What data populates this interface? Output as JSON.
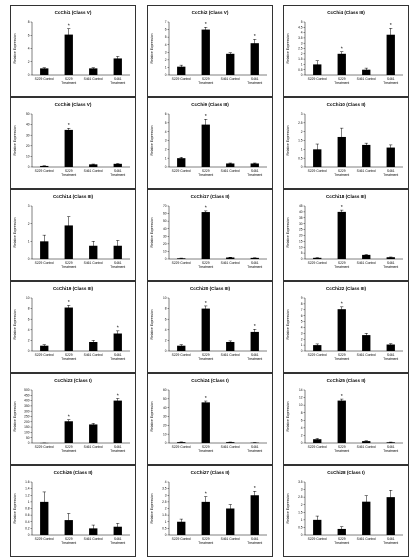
{
  "chart_data": [
    {
      "type": "bar",
      "title": "CcChi1 (Class V)",
      "ylabel": "Relative Expression",
      "categories": [
        "S229 Control",
        "S229 Treatment",
        "S461 Control",
        "S461 Treatment"
      ],
      "values": [
        1.0,
        6.1,
        1.0,
        2.5
      ],
      "errors": [
        0.1,
        0.9,
        0.1,
        0.3
      ],
      "sig": [
        false,
        true,
        false,
        false
      ],
      "ylim": [
        0,
        8
      ],
      "yticks": [
        0,
        2,
        4,
        6,
        8
      ]
    },
    {
      "type": "bar",
      "title": "CcChi2 (Class V)",
      "ylabel": "Relative Expression",
      "categories": [
        "S229 Control",
        "S229 Treatment",
        "S461 Control",
        "S461 Treatment"
      ],
      "values": [
        1.1,
        6.0,
        2.8,
        4.2
      ],
      "errors": [
        0.2,
        0.3,
        0.15,
        0.5
      ],
      "sig": [
        false,
        true,
        false,
        true
      ],
      "ylim": [
        0,
        7
      ],
      "yticks": [
        0,
        1,
        2,
        3,
        4,
        5,
        6,
        7
      ]
    },
    {
      "type": "bar",
      "title": "CcChi4 (Class III)",
      "ylabel": "Relative Expression",
      "categories": [
        "S229 Control",
        "S229 Treatment",
        "S461 Control",
        "S461 Treatment"
      ],
      "values": [
        1.0,
        2.0,
        0.5,
        3.8
      ],
      "errors": [
        0.35,
        0.2,
        0.15,
        0.6
      ],
      "sig": [
        false,
        true,
        false,
        true
      ],
      "ylim": [
        0,
        5
      ],
      "yticks": [
        0,
        0.5,
        1,
        1.5,
        2,
        2.5,
        3,
        3.5,
        4,
        4.5,
        5
      ]
    },
    {
      "type": "bar",
      "title": "CcChi6 (Class V)",
      "ylabel": "Relative Expression",
      "categories": [
        "S229 Control",
        "S229 Treatment",
        "S461 Control",
        "S461 Treatment"
      ],
      "values": [
        1.0,
        35.0,
        2.5,
        3.0
      ],
      "errors": [
        0.2,
        1.5,
        0.3,
        0.3
      ],
      "sig": [
        false,
        true,
        false,
        false
      ],
      "ylim": [
        0,
        50
      ],
      "yticks": [
        0,
        10,
        20,
        30,
        40,
        50
      ]
    },
    {
      "type": "bar",
      "title": "CcChi9 (Class III)",
      "ylabel": "Relative Expression",
      "categories": [
        "S229 Control",
        "S229 Treatment",
        "S461 Control",
        "S461 Treatment"
      ],
      "values": [
        1.0,
        4.8,
        0.4,
        0.4
      ],
      "errors": [
        0.1,
        0.6,
        0.05,
        0.05
      ],
      "sig": [
        false,
        true,
        false,
        false
      ],
      "ylim": [
        0,
        6
      ],
      "yticks": [
        0,
        1,
        2,
        3,
        4,
        5,
        6
      ]
    },
    {
      "type": "bar",
      "title": "CcChi10 (Class II)",
      "ylabel": "Relative Expression",
      "categories": [
        "S229 Control",
        "S229 Treatment",
        "S461 Control",
        "S461 Treatment"
      ],
      "values": [
        1.0,
        1.7,
        1.25,
        1.1
      ],
      "errors": [
        0.3,
        0.5,
        0.1,
        0.15
      ],
      "sig": [
        false,
        false,
        false,
        false
      ],
      "ylim": [
        0,
        3
      ],
      "yticks": [
        0,
        0.5,
        1,
        1.5,
        2,
        2.5,
        3
      ]
    },
    {
      "type": "bar",
      "title": "CcChi14 (Class III)",
      "ylabel": "Relative Expression",
      "categories": [
        "S229 Control",
        "S229 Treatment",
        "S461 Control",
        "S461 Treatment"
      ],
      "values": [
        1.0,
        1.9,
        0.75,
        0.75
      ],
      "errors": [
        0.35,
        0.5,
        0.25,
        0.3
      ],
      "sig": [
        false,
        false,
        false,
        false
      ],
      "ylim": [
        0,
        3
      ],
      "yticks": [
        0,
        1,
        2,
        3
      ]
    },
    {
      "type": "bar",
      "title": "CcChi17 (Class II)",
      "ylabel": "Relative Expression",
      "categories": [
        "S229 Control",
        "S229 Treatment",
        "S461 Control",
        "S461 Treatment"
      ],
      "values": [
        1.0,
        62.0,
        2.0,
        1.5
      ],
      "errors": [
        0.2,
        1.5,
        0.3,
        0.2
      ],
      "sig": [
        false,
        true,
        false,
        false
      ],
      "ylim": [
        0,
        70
      ],
      "yticks": [
        0,
        10,
        20,
        30,
        40,
        50,
        60,
        70
      ]
    },
    {
      "type": "bar",
      "title": "CcChi18 (Class III)",
      "ylabel": "Relative Expression",
      "categories": [
        "S229 Control",
        "S229 Treatment",
        "S461 Control",
        "S461 Treatment"
      ],
      "values": [
        1.0,
        40.0,
        3.5,
        1.5
      ],
      "errors": [
        0.2,
        1.5,
        0.3,
        0.2
      ],
      "sig": [
        false,
        true,
        false,
        false
      ],
      "ylim": [
        0,
        45
      ],
      "yticks": [
        0,
        5,
        10,
        15,
        20,
        25,
        30,
        35,
        40,
        45
      ]
    },
    {
      "type": "bar",
      "title": "CcChi19 (Class III)",
      "ylabel": "Relative Expression",
      "categories": [
        "S229 Control",
        "S229 Treatment",
        "S461 Control",
        "S461 Treatment"
      ],
      "values": [
        1.0,
        8.2,
        1.7,
        3.3
      ],
      "errors": [
        0.2,
        0.4,
        0.3,
        0.5
      ],
      "sig": [
        false,
        true,
        false,
        true
      ],
      "ylim": [
        0,
        10
      ],
      "yticks": [
        0,
        2,
        4,
        6,
        8,
        10
      ]
    },
    {
      "type": "bar",
      "title": "CcChi20 (Class III)",
      "ylabel": "Relative Expression",
      "categories": [
        "S229 Control",
        "S229 Treatment",
        "S461 Control",
        "S461 Treatment"
      ],
      "values": [
        1.0,
        8.0,
        1.7,
        3.6
      ],
      "errors": [
        0.2,
        0.5,
        0.2,
        0.5
      ],
      "sig": [
        false,
        true,
        false,
        true
      ],
      "ylim": [
        0,
        10
      ],
      "yticks": [
        0,
        2,
        4,
        6,
        8,
        10
      ]
    },
    {
      "type": "bar",
      "title": "CcChi22 (Class III)",
      "ylabel": "Relative Expression",
      "categories": [
        "S229 Control",
        "S229 Treatment",
        "S461 Control",
        "S461 Treatment"
      ],
      "values": [
        1.0,
        7.1,
        2.7,
        1.1
      ],
      "errors": [
        0.2,
        0.4,
        0.3,
        0.15
      ],
      "sig": [
        false,
        true,
        false,
        false
      ],
      "ylim": [
        0,
        9
      ],
      "yticks": [
        0,
        1,
        2,
        3,
        4,
        5,
        6,
        7,
        8,
        9
      ]
    },
    {
      "type": "bar",
      "title": "CcChi23 (Class I)",
      "ylabel": "Relative Expression",
      "categories": [
        "S229 Control",
        "S229 Treatment",
        "S461 Control",
        "S461 Treatment"
      ],
      "values": [
        1.0,
        205.0,
        175.0,
        400.0
      ],
      "errors": [
        0.5,
        15.0,
        10.0,
        20.0
      ],
      "sig": [
        false,
        true,
        false,
        true
      ],
      "ylim": [
        0,
        500
      ],
      "yticks": [
        0,
        50,
        100,
        150,
        200,
        250,
        300,
        350,
        400,
        450,
        500
      ]
    },
    {
      "type": "bar",
      "title": "CcChi24 (Class I)",
      "ylabel": "Relative Expression",
      "categories": [
        "S229 Control",
        "S229 Treatment",
        "S461 Control",
        "S461 Treatment"
      ],
      "values": [
        1.0,
        46.0,
        1.0,
        0.5
      ],
      "errors": [
        0.2,
        1.5,
        0.1,
        0.1
      ],
      "sig": [
        false,
        true,
        false,
        false
      ],
      "ylim": [
        0,
        60
      ],
      "yticks": [
        0,
        10,
        20,
        30,
        40,
        50,
        60
      ]
    },
    {
      "type": "bar",
      "title": "CcChi25 (Class II)",
      "ylabel": "Relative Expression",
      "categories": [
        "S229 Control",
        "S229 Treatment",
        "S461 Control",
        "S461 Treatment"
      ],
      "values": [
        1.0,
        11.2,
        0.5,
        0.2
      ],
      "errors": [
        0.2,
        0.4,
        0.1,
        0.05
      ],
      "sig": [
        false,
        true,
        false,
        false
      ],
      "ylim": [
        0,
        14
      ],
      "yticks": [
        0,
        2,
        4,
        6,
        8,
        10,
        12,
        14
      ]
    },
    {
      "type": "bar",
      "title": "CcChi26 (Class II)",
      "ylabel": "Relative Expression",
      "categories": [
        "S229 Control",
        "S229 Treatment",
        "S461 Control",
        "S461 Treatment"
      ],
      "values": [
        1.0,
        0.45,
        0.2,
        0.25
      ],
      "errors": [
        0.3,
        0.2,
        0.1,
        0.1
      ],
      "sig": [
        false,
        false,
        false,
        false
      ],
      "ylim": [
        0,
        1.6
      ],
      "yticks": [
        0,
        0.2,
        0.4,
        0.6,
        0.8,
        1,
        1.2,
        1.4,
        1.6
      ]
    },
    {
      "type": "bar",
      "title": "CcChi27 (Class II)",
      "ylabel": "Relative Expression",
      "categories": [
        "S229 Control",
        "S229 Treatment",
        "S461 Control",
        "S461 Treatment"
      ],
      "values": [
        1.0,
        2.5,
        2.0,
        3.0
      ],
      "errors": [
        0.2,
        0.4,
        0.3,
        0.3
      ],
      "sig": [
        false,
        true,
        false,
        true
      ],
      "ylim": [
        0,
        4
      ],
      "yticks": [
        0,
        0.5,
        1,
        1.5,
        2,
        2.5,
        3,
        3.5,
        4
      ]
    },
    {
      "type": "bar",
      "title": "CcChi28 (Class I)",
      "ylabel": "Relative Expression",
      "categories": [
        "S229 Control",
        "S229 Treatment",
        "S461 Control",
        "S461 Treatment"
      ],
      "values": [
        1.0,
        0.4,
        2.2,
        2.5
      ],
      "errors": [
        0.25,
        0.15,
        0.4,
        0.45
      ],
      "sig": [
        false,
        false,
        false,
        false
      ],
      "ylim": [
        0,
        3.5
      ],
      "yticks": [
        0,
        0.5,
        1,
        1.5,
        2,
        2.5,
        3,
        3.5
      ]
    }
  ],
  "significance_marker": "*",
  "x_tick_lines": {
    "S229 Control": [
      "S229 Control"
    ],
    "S229 Treatment": [
      "S229",
      "Treatment"
    ],
    "S461 Control": [
      "S461 Control"
    ],
    "S461 Treatment": [
      "S461",
      "Treatment"
    ]
  }
}
